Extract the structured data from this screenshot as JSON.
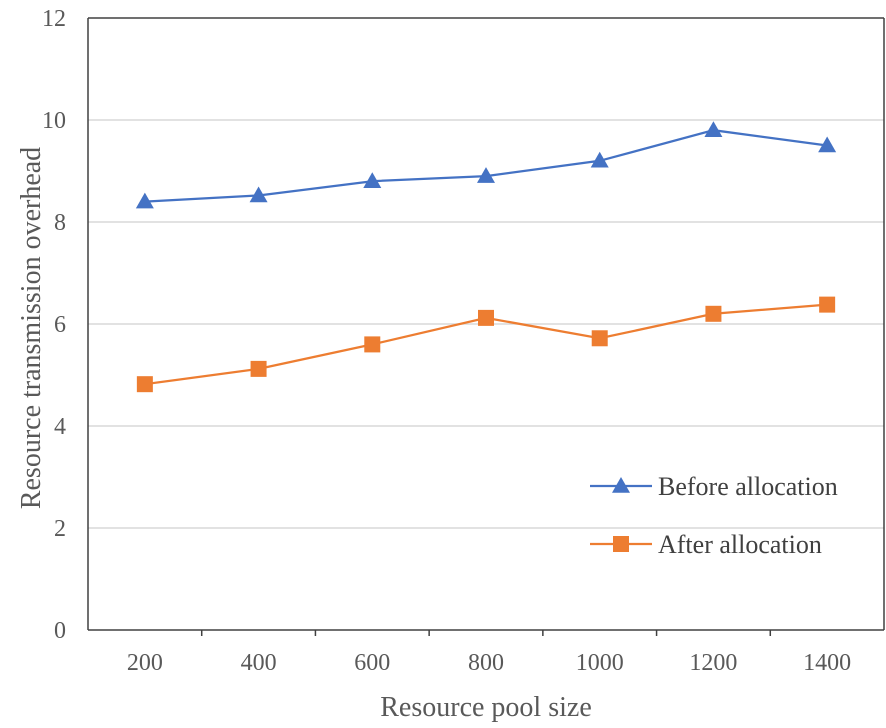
{
  "chart_data": {
    "type": "line",
    "title": "",
    "xlabel": "Resource pool size",
    "ylabel": "Resource transmission overhead",
    "categories": [
      "200",
      "400",
      "600",
      "800",
      "1000",
      "1200",
      "1400"
    ],
    "ylim": [
      0,
      12
    ],
    "yticks": [
      "0",
      "2",
      "4",
      "6",
      "8",
      "10",
      "12"
    ],
    "grid": "horizontal",
    "legend": "lower-right inside",
    "series": [
      {
        "name": "Before allocation",
        "values": [
          8.4,
          8.52,
          8.8,
          8.9,
          9.2,
          9.8,
          9.5
        ],
        "color": "#4472c4",
        "marker": "triangle"
      },
      {
        "name": "After allocation",
        "values": [
          4.82,
          5.12,
          5.6,
          6.12,
          5.72,
          6.2,
          6.38
        ],
        "color": "#ed7d31",
        "marker": "square"
      }
    ]
  }
}
